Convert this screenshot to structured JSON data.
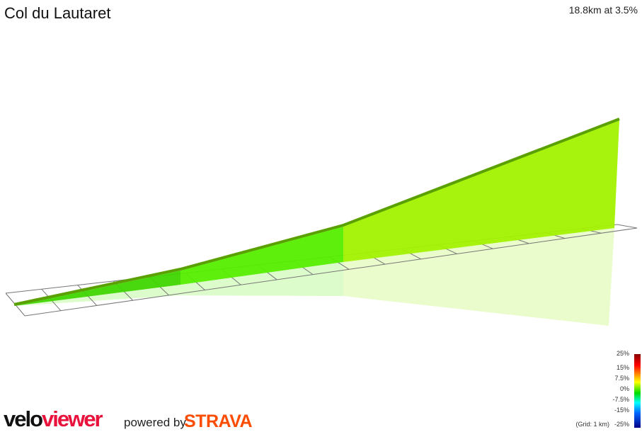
{
  "header": {
    "title": "Col du Lautaret",
    "summary": "18.8km at 3.5%"
  },
  "legend": {
    "labels": [
      "25%",
      "15%",
      "7.5%",
      "0%",
      "-7.5%",
      "-15%",
      "-25%"
    ],
    "grid_note": "(Grid: 1 km)"
  },
  "segment_colors": [
    "#3fd600",
    "#55ee00",
    "#a2f200"
  ],
  "branding": {
    "logo_part1": "velo",
    "logo_part2": "viewer",
    "powered_by": "powered by",
    "strava": "STRAVA"
  }
}
